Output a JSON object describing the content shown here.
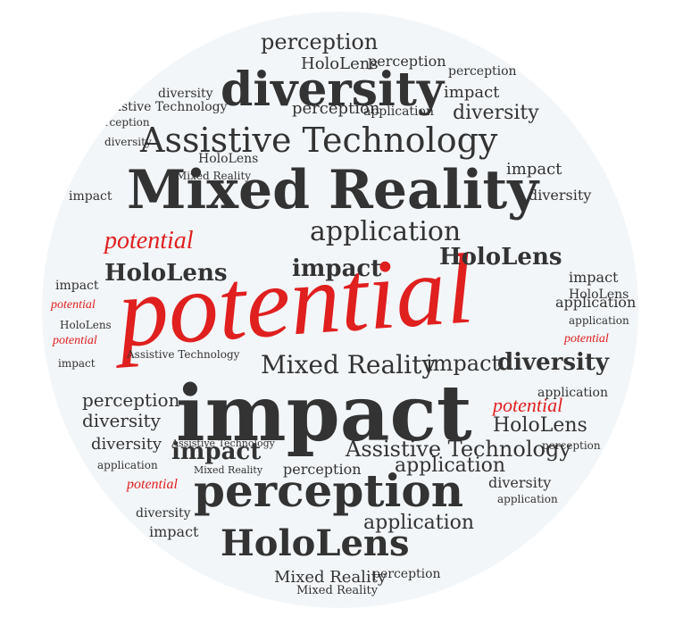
{
  "words": {
    "hololens": "HoloLens",
    "mixed_reality": "Mixed Reality",
    "perception": "perception",
    "application": "application",
    "diversity": "diversity",
    "impact": "impact",
    "assistive_technology": "Assistive Technology",
    "potential": "potential"
  },
  "colors": {
    "background": "#f3f6f8",
    "text": "#333333",
    "accent": "#e01f1f"
  }
}
